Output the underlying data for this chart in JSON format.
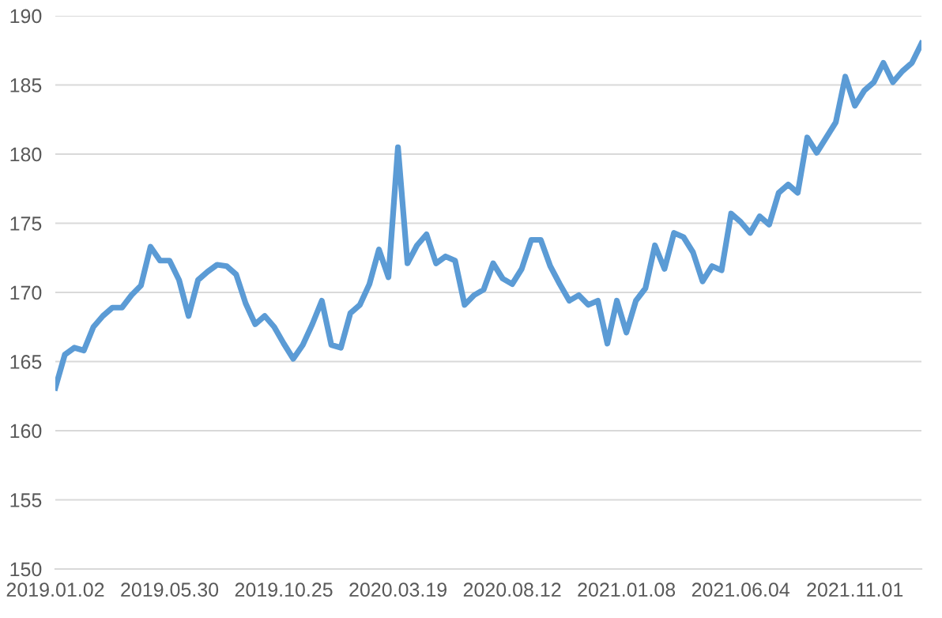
{
  "chart_data": {
    "type": "line",
    "categories": [
      "2019.01.02",
      null,
      null,
      null,
      null,
      null,
      null,
      null,
      null,
      null,
      null,
      null,
      "2019.05.30",
      null,
      null,
      null,
      null,
      null,
      null,
      null,
      null,
      null,
      null,
      null,
      "2019.10.25",
      null,
      null,
      null,
      null,
      null,
      null,
      null,
      null,
      null,
      null,
      null,
      "2020.03.19",
      null,
      null,
      null,
      null,
      null,
      null,
      null,
      null,
      null,
      null,
      null,
      "2020.08.12",
      null,
      null,
      null,
      null,
      null,
      null,
      null,
      null,
      null,
      null,
      null,
      "2021.01.08",
      null,
      null,
      null,
      null,
      null,
      null,
      null,
      null,
      null,
      null,
      null,
      "2021.06.04",
      null,
      null,
      null,
      null,
      null,
      null,
      null,
      null,
      null,
      null,
      null,
      "2021.11.01",
      null,
      null,
      null,
      null,
      null,
      null,
      null
    ],
    "series": [
      {
        "color": "#5b9bd5",
        "values": [
          163.1,
          165.5,
          166.0,
          165.8,
          167.5,
          168.3,
          168.9,
          168.9,
          169.8,
          170.5,
          173.3,
          172.3,
          172.3,
          170.9,
          168.3,
          170.9,
          171.5,
          172.0,
          171.9,
          171.3,
          169.2,
          167.7,
          168.3,
          167.5,
          166.3,
          165.2,
          166.2,
          167.7,
          169.4,
          166.2,
          166.0,
          168.5,
          169.1,
          170.6,
          173.1,
          171.1,
          180.5,
          172.1,
          173.4,
          174.2,
          172.1,
          172.6,
          172.3,
          169.1,
          169.8,
          170.2,
          172.1,
          171.0,
          170.6,
          171.7,
          173.8,
          173.8,
          171.9,
          170.6,
          169.4,
          169.8,
          169.1,
          169.4,
          166.3,
          169.4,
          167.1,
          169.4,
          170.3,
          173.4,
          171.7,
          174.3,
          174.0,
          172.9,
          170.8,
          171.9,
          171.6,
          175.7,
          175.1,
          174.3,
          175.5,
          174.9,
          177.2,
          177.8,
          177.2,
          181.2,
          180.1,
          181.2,
          182.3,
          185.6,
          183.5,
          184.6,
          185.2,
          186.6,
          185.2,
          186.0,
          186.6,
          188.0
        ]
      }
    ],
    "ylim": [
      150,
      190
    ],
    "yticks": [
      150,
      155,
      160,
      165,
      170,
      175,
      180,
      185,
      190
    ],
    "grid": "y",
    "legend": false,
    "marker": "none",
    "line_style": "solid"
  }
}
